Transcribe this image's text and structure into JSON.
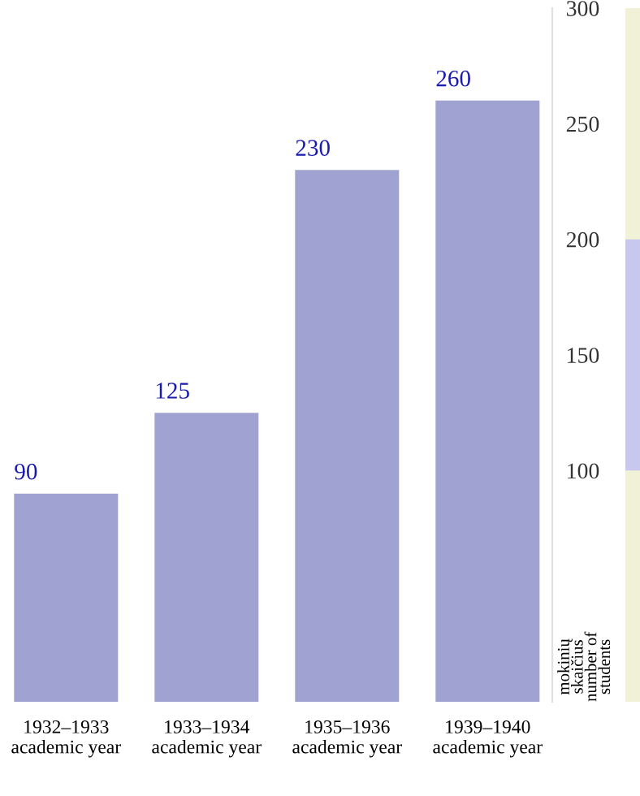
{
  "chart_data": {
    "type": "bar",
    "categories": [
      "1932–1933\nacademic year",
      "1933–1934\nacademic year",
      "1935–1936\nacademic year",
      "1939–1940\nacademic year"
    ],
    "values": [
      90,
      125,
      230,
      260
    ],
    "color": "#a0a2d2",
    "data_labels": true,
    "ylabel": "mokinių\nskaičius\nnumber of\nstudents",
    "ylim": [
      0,
      300
    ],
    "yticks": [
      100,
      150,
      200,
      250,
      300
    ],
    "grid": false,
    "legend": false
  }
}
